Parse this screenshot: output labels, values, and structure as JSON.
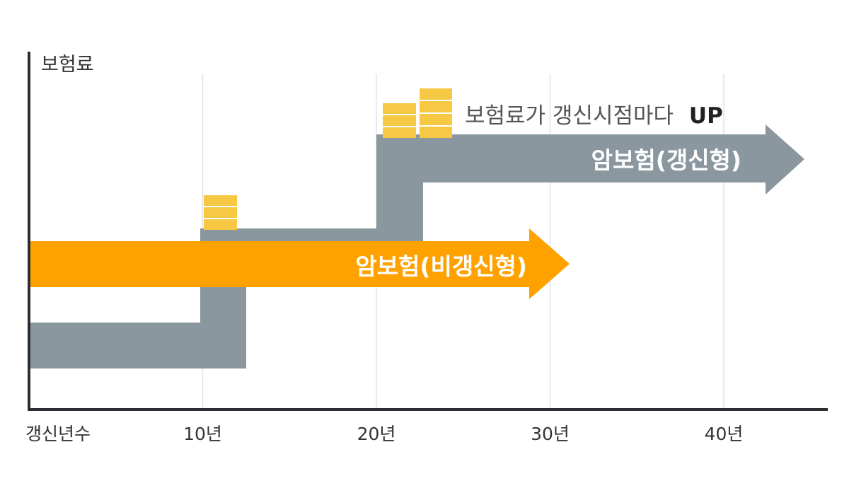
{
  "chart_data": {
    "type": "diagram",
    "ylabel": "보험료",
    "xlabel": "갱신년수",
    "x_ticks": [
      "10년",
      "20년",
      "30년",
      "40년"
    ],
    "x_tick_values": [
      10,
      20,
      30,
      40
    ],
    "grid": "vertical",
    "series": [
      {
        "name": "암보험(갱신형)",
        "kind": "step",
        "renewal_points": [
          10,
          20
        ],
        "color": "#8b979f"
      },
      {
        "name": "암보험(비갱신형)",
        "kind": "flat",
        "color": "#ffa200"
      }
    ],
    "annotation": {
      "text": "보험료가 갱신시점마다",
      "emphasis": "UP"
    }
  },
  "colors": {
    "axis": "#2b2f33",
    "gray_band": "#8b979f",
    "orange_band": "#ffa200",
    "coin": "#f7c843",
    "coin_line": "#ffffff",
    "grid": "#e3e3e3",
    "text": "#333333"
  }
}
